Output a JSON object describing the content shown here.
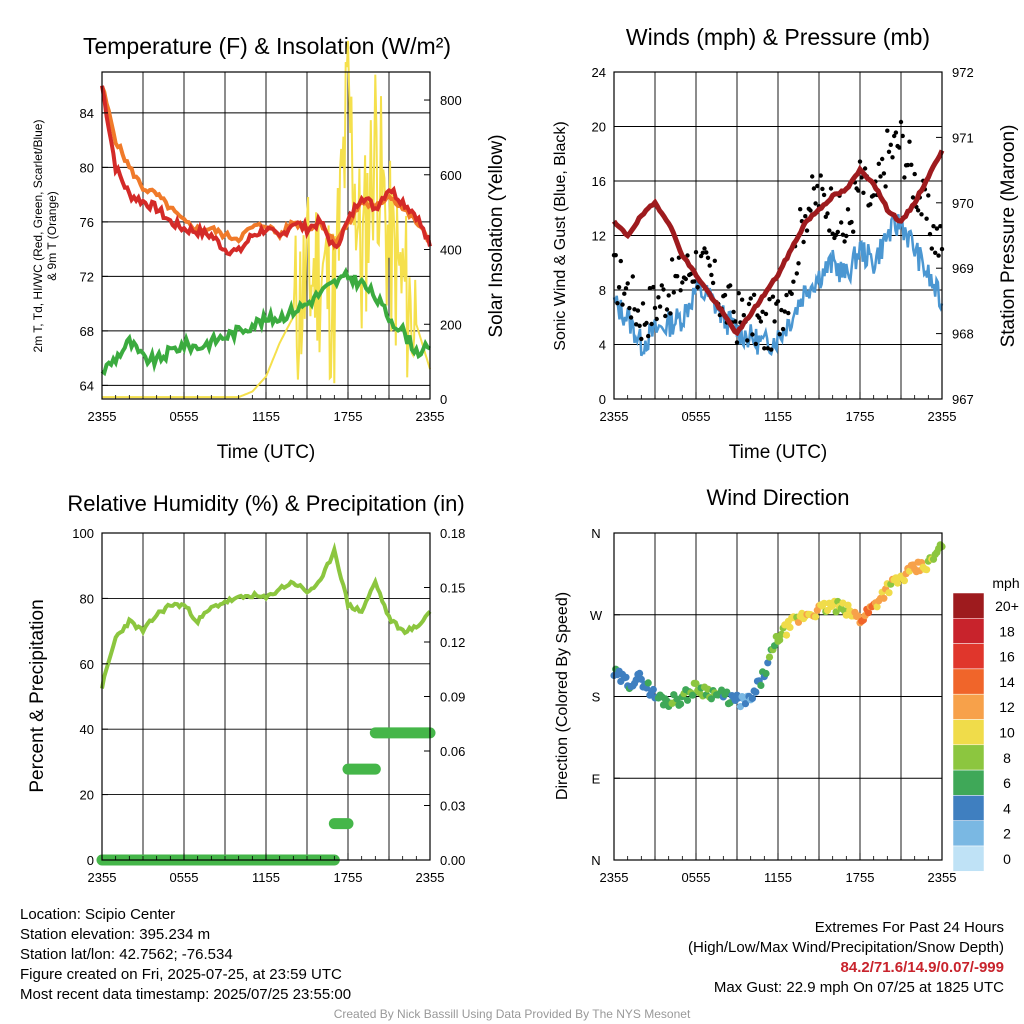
{
  "colors": {
    "temp": "#d42a28",
    "temp9m": "#f07a2a",
    "dewpoint": "#3bab3f",
    "solar": "#f5e04c",
    "wind": "#4b97d2",
    "gust": "#000000",
    "pressure": "#9e1b1e",
    "rh": "#8cc63f",
    "precip": "#45b649"
  },
  "time_ticks": [
    "2355",
    "0555",
    "1155",
    "1755",
    "2355"
  ],
  "panels": {
    "temp": {
      "title": "Temperature (F) & Insolation (W/m²)",
      "xlabel": "Time (UTC)",
      "ylabel_left_line1": "2m T, Td, HI/WC (Red, Green, Scarlet/Blue)",
      "ylabel_left_line2": "& 9m T (Orange)",
      "ylabel_right": "Solar Insolation (Yellow)"
    },
    "wind": {
      "title": "Winds (mph) & Pressure (mb)",
      "xlabel": "Time (UTC)",
      "ylabel_left": "Sonic Wind & Gust (Blue, Black)",
      "ylabel_right": "Station Pressure (Maroon)"
    },
    "rh": {
      "title": "Relative Humidity (%) & Precipitation (in)",
      "ylabel_left": "Percent & Precipitation"
    },
    "dir": {
      "title": "Wind Direction",
      "ylabel_left": "Direction (Colored By Speed)",
      "legend_title": "mph",
      "legend_labels": [
        "20+",
        "18",
        "16",
        "14",
        "12",
        "10",
        "8",
        "6",
        "4",
        "2",
        "0"
      ],
      "legend_colors": [
        "#9e1b1e",
        "#c8232c",
        "#e0362c",
        "#f0652a",
        "#f7a14a",
        "#f0dc4a",
        "#8cc63f",
        "#3fa858",
        "#3f7fc0",
        "#7ab8e3",
        "#bfe2f6"
      ]
    }
  },
  "chart_data": [
    {
      "type": "line",
      "title": "Temperature (F) & Insolation (W/m²)",
      "xlabel": "Time (UTC)",
      "ylabel": "2m T, Td, HI/WC (Red, Green, Scarlet/Blue) & 9m T (Orange)",
      "y2label": "Solar Insolation (Yellow)",
      "x_hours": [
        0,
        1,
        2,
        3,
        4,
        5,
        6,
        7,
        8,
        9,
        10,
        11,
        12,
        13,
        14,
        15,
        16,
        17,
        18,
        19,
        20,
        21,
        22,
        23,
        24
      ],
      "ylim": [
        63,
        87
      ],
      "y2lim": [
        0,
        875
      ],
      "yticks": [
        64,
        68,
        72,
        76,
        80,
        84
      ],
      "y2ticks": [
        0,
        200,
        400,
        600,
        800
      ],
      "series": [
        {
          "name": "2m T",
          "values": [
            86,
            80,
            78,
            77.5,
            77,
            76,
            75.5,
            75.3,
            75,
            74,
            73.8,
            75,
            75.5,
            74.8,
            76,
            75.5,
            76,
            74,
            76,
            78,
            77,
            78.5,
            77.5,
            76.5,
            74.2
          ]
        },
        {
          "name": "9m T",
          "values": [
            86,
            82,
            80,
            78.5,
            78,
            77,
            76,
            75.5,
            75.5,
            75,
            74.8,
            75.6,
            75.8,
            75,
            76,
            75.5,
            76,
            74.5,
            75.8,
            77.5,
            77,
            78,
            77,
            76,
            74.5
          ]
        },
        {
          "name": "Td",
          "values": [
            65,
            66,
            67.2,
            66,
            65.8,
            66.5,
            67,
            66.8,
            67.2,
            67.6,
            68,
            68.5,
            68.8,
            69,
            69.5,
            70,
            70.8,
            71.5,
            72,
            71.5,
            70.5,
            69,
            68,
            66.5,
            66.7
          ]
        },
        {
          "name": "Solar",
          "values": [
            5,
            5,
            5,
            5,
            5,
            5,
            5,
            5,
            5,
            5,
            5,
            20,
            60,
            150,
            220,
            310,
            360,
            250,
            800,
            350,
            700,
            400,
            300,
            200,
            80
          ]
        }
      ]
    },
    {
      "type": "line",
      "title": "Winds (mph) & Pressure (mb)",
      "xlabel": "Time (UTC)",
      "ylabel": "Sonic Wind & Gust (Blue, Black)",
      "y2label": "Station Pressure (Maroon)",
      "x_hours": [
        0,
        1,
        2,
        3,
        4,
        5,
        6,
        7,
        8,
        9,
        10,
        11,
        12,
        13,
        14,
        15,
        16,
        17,
        18,
        19,
        20,
        21,
        22,
        23,
        24
      ],
      "ylim": [
        0,
        24
      ],
      "y2lim": [
        967,
        972
      ],
      "yticks": [
        0,
        4,
        8,
        12,
        16,
        20,
        24
      ],
      "y2ticks": [
        967,
        968,
        969,
        970,
        971,
        972
      ],
      "series": [
        {
          "name": "Sonic Wind",
          "values": [
            7,
            6,
            4,
            5,
            5.5,
            6,
            8,
            7.5,
            6,
            5,
            4.5,
            4,
            4.5,
            6,
            8,
            9,
            10,
            9,
            11,
            10,
            12,
            13,
            11,
            9,
            7
          ]
        },
        {
          "name": "Gust",
          "values": [
            9,
            8,
            6,
            7,
            8,
            9,
            10,
            9,
            7,
            6,
            6,
            5,
            6,
            9,
            14,
            15,
            14,
            12,
            16,
            14,
            18,
            19,
            16,
            13,
            11
          ]
        },
        {
          "name": "Station Pressure",
          "values": [
            969.7,
            969.5,
            969.8,
            970,
            969.7,
            969.2,
            968.9,
            968.6,
            968.3,
            968,
            968.3,
            968.6,
            968.9,
            969.3,
            969.7,
            969.9,
            970.1,
            970.2,
            970.5,
            970.3,
            969.9,
            969.7,
            970.0,
            970.4,
            970.8
          ]
        }
      ]
    },
    {
      "type": "line",
      "title": "Relative Humidity (%) & Precipitation (in)",
      "xlabel": "",
      "ylabel": "Percent & Precipitation",
      "x_hours": [
        0,
        1,
        2,
        3,
        4,
        5,
        6,
        7,
        8,
        9,
        10,
        11,
        12,
        13,
        14,
        15,
        16,
        17,
        18,
        19,
        20,
        21,
        22,
        23,
        24
      ],
      "ylim": [
        0,
        100
      ],
      "y2lim": [
        0,
        0.18
      ],
      "yticks": [
        0,
        20,
        40,
        60,
        80,
        100
      ],
      "y2ticks": [
        0.0,
        0.03,
        0.06,
        0.09,
        0.12,
        0.15,
        0.18
      ],
      "series": [
        {
          "name": "RH",
          "values": [
            53,
            68,
            73,
            70,
            75,
            78,
            78,
            73,
            77,
            79,
            80,
            81,
            80,
            83,
            85,
            82,
            85,
            95,
            78,
            76,
            85,
            74,
            70,
            71,
            76
          ]
        },
        {
          "name": "Precipitation",
          "values": [
            0,
            0,
            0,
            0,
            0,
            0,
            0,
            0,
            0,
            0,
            0,
            0,
            0,
            0,
            0,
            0,
            0,
            0.02,
            0.05,
            0.05,
            0.07,
            0.07,
            0.07,
            0.07,
            0.07
          ]
        }
      ]
    },
    {
      "type": "scatter",
      "title": "Wind Direction",
      "ylabel": "Direction (Colored By Speed)",
      "x_hours": [
        0,
        1,
        2,
        3,
        4,
        5,
        6,
        7,
        8,
        9,
        10,
        11,
        12,
        13,
        14,
        15,
        16,
        17,
        18,
        19,
        20,
        21,
        22,
        23,
        24
      ],
      "ylim_deg": [
        0,
        360
      ],
      "yticks": [
        "N",
        "E",
        "S",
        "W",
        "N"
      ],
      "legend_title": "mph",
      "series": [
        {
          "name": "Direction",
          "values": [
            205,
            195,
            200,
            180,
            175,
            178,
            190,
            185,
            180,
            175,
            175,
            205,
            245,
            260,
            270,
            275,
            280,
            275,
            265,
            280,
            300,
            310,
            320,
            325,
            345
          ]
        },
        {
          "name": "Speed",
          "values": [
            5,
            4,
            4,
            5,
            6,
            6,
            7,
            7,
            5,
            4,
            3,
            5,
            8,
            10,
            10,
            11,
            9,
            9,
            13,
            12,
            10,
            10,
            13,
            9,
            8
          ]
        }
      ]
    }
  ],
  "info": {
    "location": "Location: Scipio Center",
    "elevation": "Station elevation: 395.234 m",
    "latlon": "Station lat/lon: 42.7562; -76.534",
    "created": "Figure created on Fri, 2025-07-25, at 23:59 UTC",
    "recent": "Most recent data timestamp: 2025/07/25 23:55:00",
    "extremes_title": "Extremes For Past 24 Hours",
    "extremes_legend": "(High/Low/Max Wind/Precipitation/Snow Depth)",
    "extremes_values": "84.2/71.6/14.9/0.07/-999",
    "max_gust": "Max Gust: 22.9 mph On 07/25 at 1825 UTC"
  },
  "credit": "Created By Nick Bassill Using Data Provided By The NYS Mesonet"
}
